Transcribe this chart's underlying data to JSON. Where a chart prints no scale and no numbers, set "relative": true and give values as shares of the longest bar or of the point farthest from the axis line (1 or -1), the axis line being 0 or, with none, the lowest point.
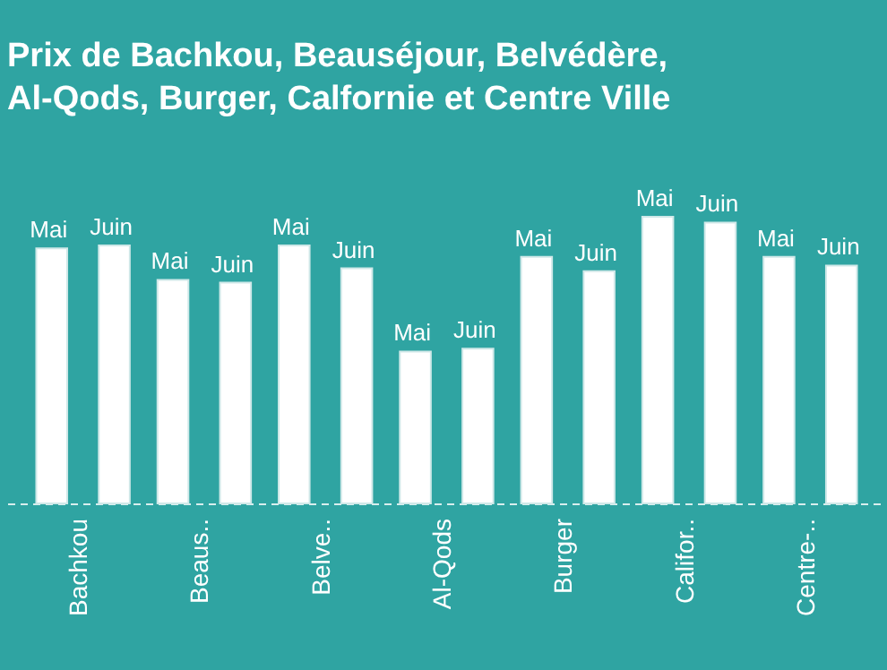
{
  "chart_data": {
    "type": "bar",
    "title": "Prix de Bachkou, Beauséjour, Belvédère,\nAl-Qods, Burger, Calfornie et Centre Ville",
    "relative": true,
    "legend": false,
    "categories": [
      "Bachkou",
      "Beaus..",
      "Belve..",
      "Al-Qods",
      "Burger",
      "Califor..",
      "Centre-.."
    ],
    "series": [
      {
        "name": "Mai",
        "color": "#ffffff",
        "values": [
          0.89,
          0.78,
          0.9,
          0.53,
          0.86,
          1,
          0.86
        ]
      },
      {
        "name": "Juin",
        "color": "#ffffff",
        "values": [
          0.9,
          0.77,
          0.82,
          0.54,
          0.81,
          0.98,
          0.83
        ]
      }
    ]
  }
}
